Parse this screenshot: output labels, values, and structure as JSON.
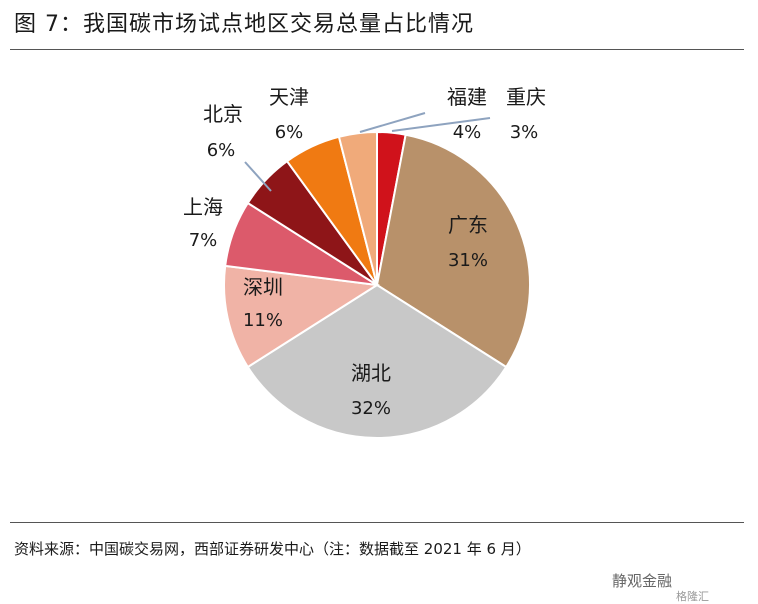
{
  "figure": {
    "title": "图 7：我国碳市场试点地区交易总量占比情况",
    "source": "资料来源：中国碳交易网，西部证券研发中心（注：数据截至 2021 年 6 月）",
    "watermark": "静观金融",
    "watermark_sub": "格隆汇"
  },
  "chart_data": {
    "type": "pie",
    "title": "",
    "start_angle_deg": 0,
    "direction": "clockwise",
    "slices": [
      {
        "label": "重庆",
        "value": 3,
        "value_label": "3%",
        "color": "#d0121b"
      },
      {
        "label": "广东",
        "value": 31,
        "value_label": "31%",
        "color": "#b8916a"
      },
      {
        "label": "湖北",
        "value": 32,
        "value_label": "32%",
        "color": "#c8c8c8"
      },
      {
        "label": "深圳",
        "value": 11,
        "value_label": "11%",
        "color": "#f0b3a6"
      },
      {
        "label": "上海",
        "value": 7,
        "value_label": "7%",
        "color": "#dc5a6b"
      },
      {
        "label": "北京",
        "value": 6,
        "value_label": "6%",
        "color": "#8e1518"
      },
      {
        "label": "天津",
        "value": 6,
        "value_label": "6%",
        "color": "#f07a12"
      },
      {
        "label": "福建",
        "value": 4,
        "value_label": "4%",
        "color": "#f0aa7a"
      }
    ]
  }
}
